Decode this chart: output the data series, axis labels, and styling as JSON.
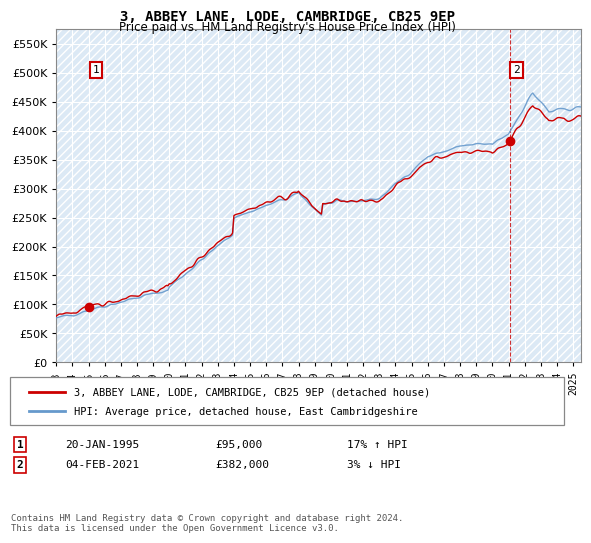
{
  "title": "3, ABBEY LANE, LODE, CAMBRIDGE, CB25 9EP",
  "subtitle": "Price paid vs. HM Land Registry's House Price Index (HPI)",
  "legend_line1": "3, ABBEY LANE, LODE, CAMBRIDGE, CB25 9EP (detached house)",
  "legend_line2": "HPI: Average price, detached house, East Cambridgeshire",
  "annotation1_date": "20-JAN-1995",
  "annotation1_price": "£95,000",
  "annotation1_hpi": "17% ↑ HPI",
  "annotation2_date": "04-FEB-2021",
  "annotation2_price": "£382,000",
  "annotation2_hpi": "3% ↓ HPI",
  "footer": "Contains HM Land Registry data © Crown copyright and database right 2024.\nThis data is licensed under the Open Government Licence v3.0.",
  "sale1_year": 1995.05,
  "sale1_price": 95000,
  "sale2_year": 2021.09,
  "sale2_price": 382000,
  "price_line_color": "#cc0000",
  "hpi_line_color": "#6699cc",
  "hatch_bg_color": "#dce9f5",
  "ylim": [
    0,
    575000
  ],
  "xlim_start": 1993.0,
  "xlim_end": 2025.5,
  "yticks": [
    0,
    50000,
    100000,
    150000,
    200000,
    250000,
    300000,
    350000,
    400000,
    450000,
    500000,
    550000
  ],
  "xticks": [
    1993,
    1994,
    1995,
    1996,
    1997,
    1998,
    1999,
    2000,
    2001,
    2002,
    2003,
    2004,
    2005,
    2006,
    2007,
    2008,
    2009,
    2010,
    2011,
    2012,
    2013,
    2014,
    2015,
    2016,
    2017,
    2018,
    2019,
    2020,
    2021,
    2022,
    2023,
    2024,
    2025
  ]
}
